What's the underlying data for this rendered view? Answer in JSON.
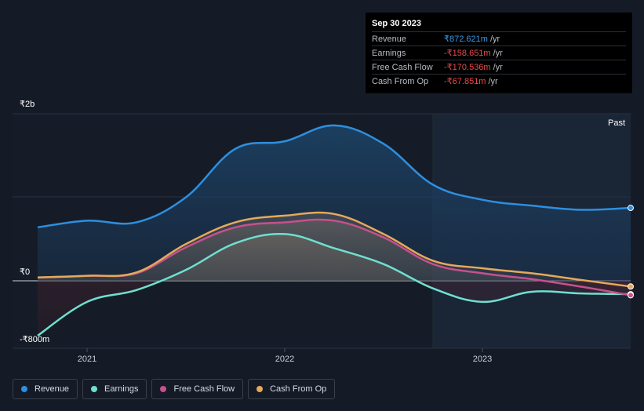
{
  "tooltip": {
    "date": "Sep 30 2023",
    "rows": [
      {
        "label": "Revenue",
        "value": "₹872.621m",
        "unit": "/yr",
        "color": "#3b9ae8"
      },
      {
        "label": "Earnings",
        "value": "-₹158.651m",
        "unit": "/yr",
        "color": "#e84a4a"
      },
      {
        "label": "Free Cash Flow",
        "value": "-₹170.536m",
        "unit": "/yr",
        "color": "#e84a4a"
      },
      {
        "label": "Cash From Op",
        "value": "-₹67.851m",
        "unit": "/yr",
        "color": "#e84a4a"
      }
    ]
  },
  "past_label": "Past",
  "legend": [
    {
      "label": "Revenue",
      "color": "#2d8fe0"
    },
    {
      "label": "Earnings",
      "color": "#6ee0cf"
    },
    {
      "label": "Free Cash Flow",
      "color": "#c8508c"
    },
    {
      "label": "Cash From Op",
      "color": "#e6a95a"
    }
  ],
  "chart_data": {
    "type": "area",
    "currency": "₹",
    "y_ticks": [
      {
        "value": 2000,
        "label": "₹2b"
      },
      {
        "value": 0,
        "label": "₹0"
      },
      {
        "value": -800,
        "label": "-₹800m"
      }
    ],
    "x_ticks": [
      {
        "value": 2021.0,
        "label": "2021"
      },
      {
        "value": 2022.0,
        "label": "2022"
      },
      {
        "value": 2023.0,
        "label": "2023"
      }
    ],
    "xlim": [
      2020.75,
      2023.75
    ],
    "ylim": [
      -800,
      2000
    ],
    "past_start": 2022.75,
    "series": [
      {
        "name": "Revenue",
        "color": "#2d8fe0",
        "x": [
          2020.75,
          2021.0,
          2021.25,
          2021.5,
          2021.75,
          2022.0,
          2022.25,
          2022.5,
          2022.75,
          2023.0,
          2023.25,
          2023.5,
          2023.75
        ],
        "y": [
          640,
          720,
          700,
          1000,
          1580,
          1670,
          1860,
          1640,
          1150,
          970,
          900,
          850,
          873
        ]
      },
      {
        "name": "Earnings",
        "color": "#6ee0cf",
        "x": [
          2020.75,
          2021.0,
          2021.25,
          2021.5,
          2021.75,
          2022.0,
          2022.25,
          2022.5,
          2022.75,
          2023.0,
          2023.25,
          2023.5,
          2023.75
        ],
        "y": [
          -650,
          -250,
          -110,
          130,
          450,
          560,
          390,
          200,
          -90,
          -250,
          -130,
          -150,
          -159
        ]
      },
      {
        "name": "Free Cash Flow",
        "color": "#c8508c",
        "x": [
          2020.75,
          2021.0,
          2021.25,
          2021.5,
          2021.75,
          2022.0,
          2022.25,
          2022.5,
          2022.75,
          2023.0,
          2023.25,
          2023.5,
          2023.75
        ],
        "y": [
          40,
          60,
          90,
          400,
          640,
          700,
          720,
          520,
          200,
          90,
          20,
          -70,
          -171
        ]
      },
      {
        "name": "Cash From Op",
        "color": "#e6a95a",
        "x": [
          2020.75,
          2021.0,
          2021.25,
          2021.5,
          2021.75,
          2022.0,
          2022.25,
          2022.5,
          2022.75,
          2023.0,
          2023.25,
          2023.5,
          2023.75
        ],
        "y": [
          40,
          60,
          100,
          440,
          700,
          780,
          800,
          560,
          240,
          150,
          90,
          10,
          -68
        ]
      }
    ]
  }
}
